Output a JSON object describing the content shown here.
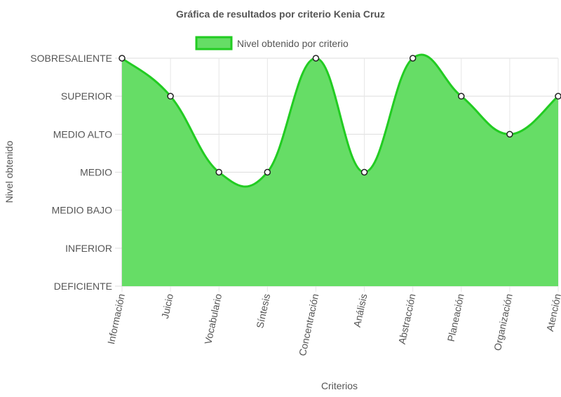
{
  "chart_data": {
    "type": "area",
    "title": "Gráfica de resultados por criterio Kenia Cruz",
    "xlabel": "Criterios",
    "ylabel": "Nivel obtenido",
    "y_levels": [
      "DEFICIENTE",
      "INFERIOR",
      "MEDIO BAJO",
      "MEDIO",
      "MEDIO ALTO",
      "SUPERIOR",
      "SOBRESALIENTE"
    ],
    "categories": [
      "Información",
      "Juicio",
      "Vocabulario",
      "Síntesis",
      "Concentración",
      "Análisis",
      "Abstracción",
      "Planeación",
      "Organización",
      "Atención"
    ],
    "series": [
      {
        "name": "Nivel obtenido por criterio",
        "values": [
          6,
          5,
          3,
          3,
          6,
          3,
          6,
          5,
          4,
          5
        ],
        "line_color": "#22cc22",
        "fill_color": "#66dd66"
      }
    ],
    "ylim": [
      0,
      6
    ],
    "grid": true,
    "legend": "top"
  }
}
